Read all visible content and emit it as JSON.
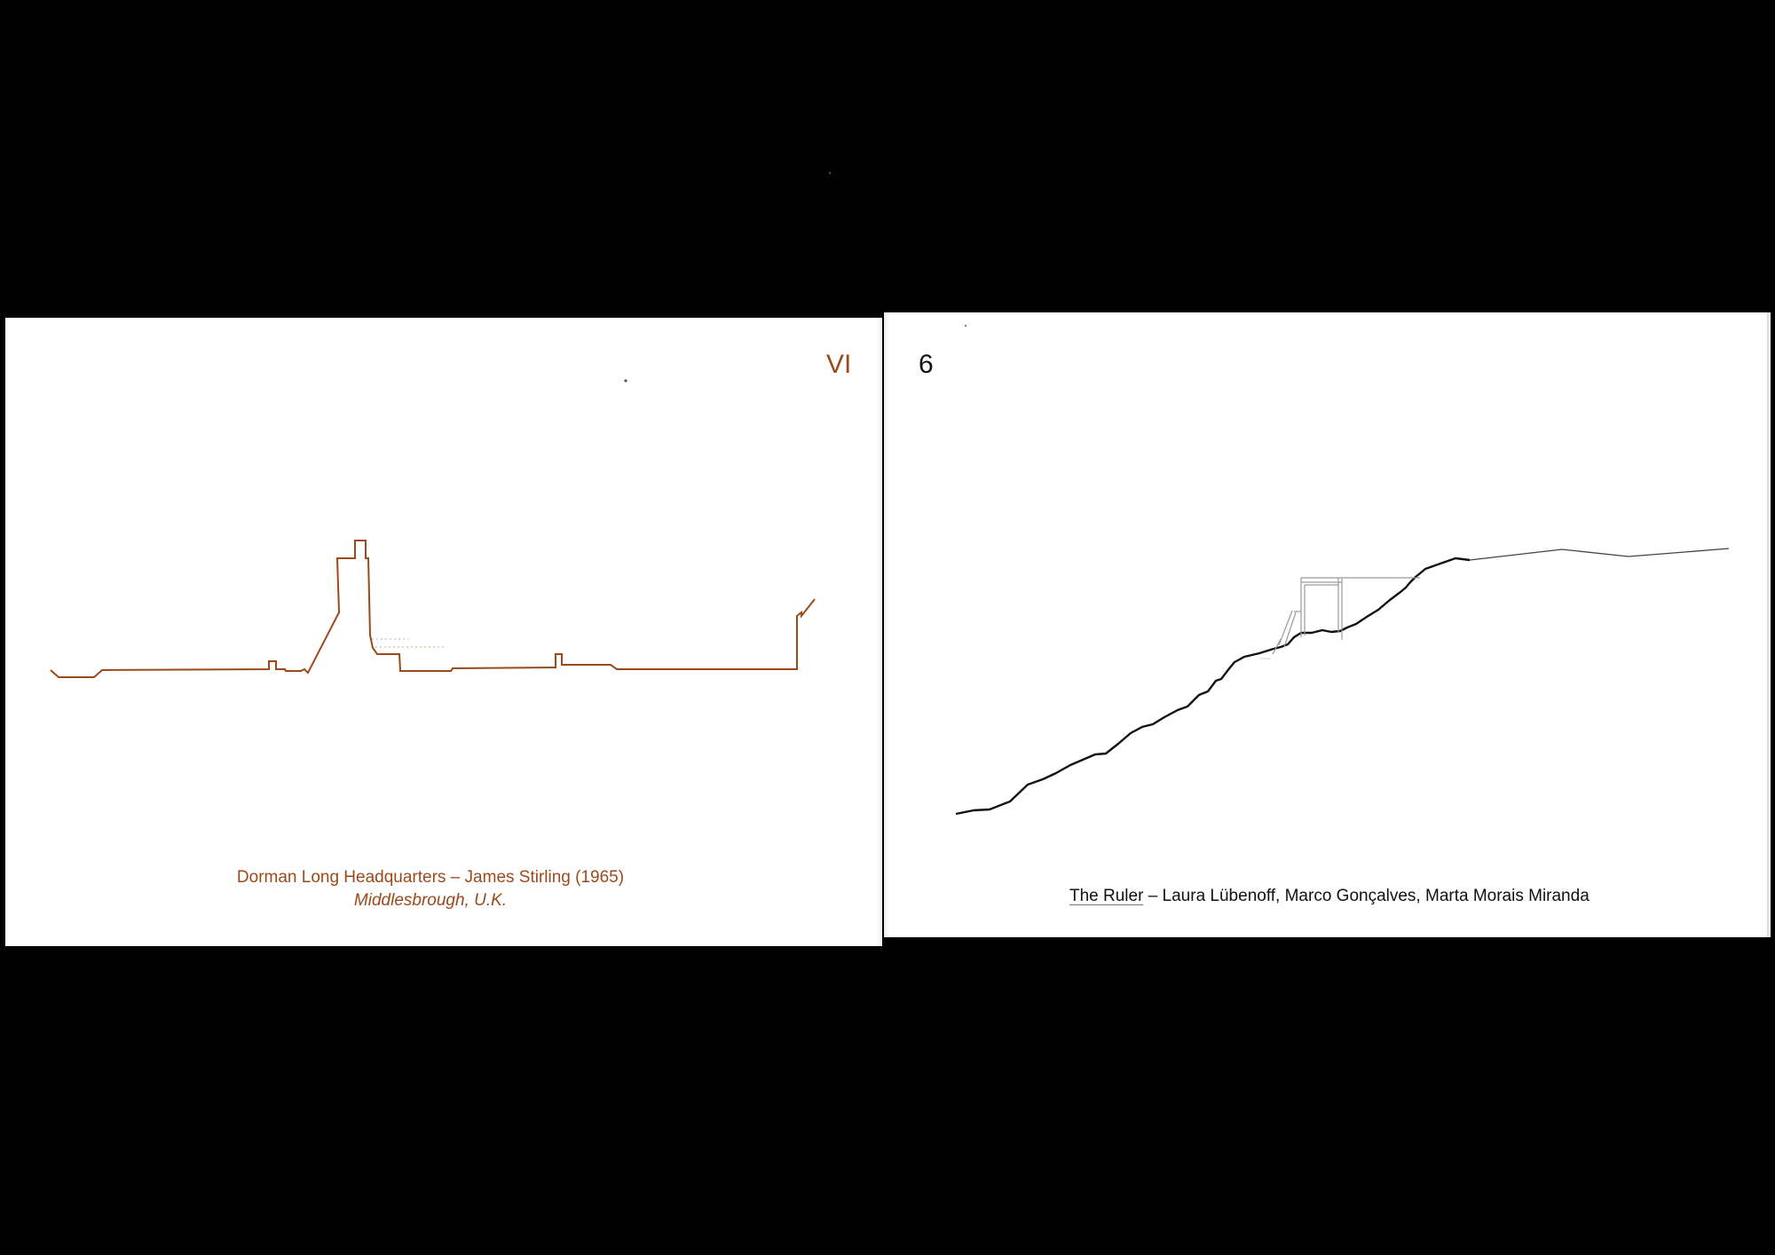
{
  "spread": {
    "left_page": {
      "folio": "VI",
      "caption": {
        "title": "Dorman Long Headquarters – James Stirling (1965)",
        "place": "Middlesbrough, U.K."
      },
      "colors": {
        "accent": "#9a4a1a"
      }
    },
    "right_page": {
      "folio": "6",
      "caption": {
        "project": "The Ruler",
        "separator": " – ",
        "authors": "Laura Lübenoff, Marco Gonçalves, Marta Morais Miranda"
      },
      "colors": {
        "ink": "#111111"
      }
    }
  }
}
